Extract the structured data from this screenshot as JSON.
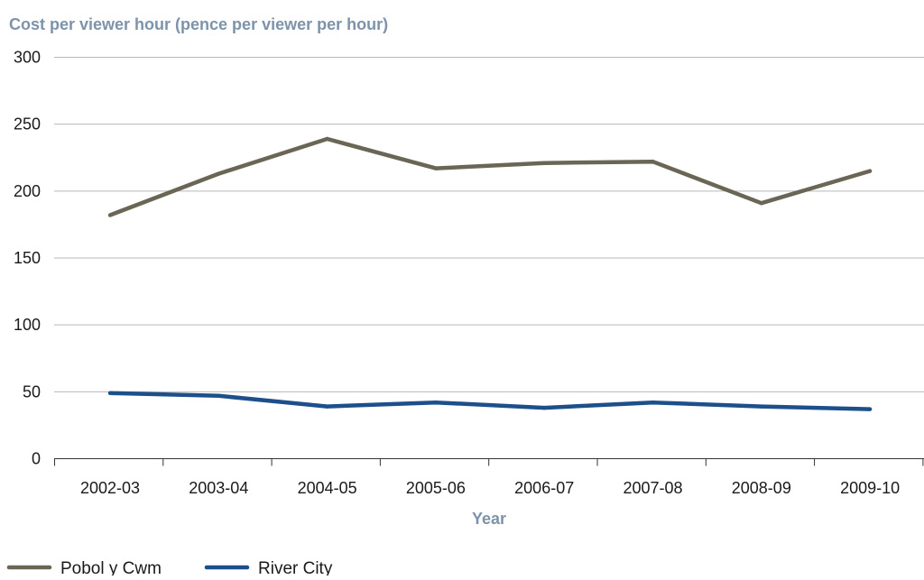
{
  "chart_data": {
    "type": "line",
    "title": "",
    "ylabel": "Cost per viewer hour (pence per viewer per hour)",
    "xlabel": "Year",
    "categories": [
      "2002-03",
      "2003-04",
      "2004-05",
      "2005-06",
      "2006-07",
      "2007-08",
      "2008-09",
      "2009-10"
    ],
    "ylim": [
      0,
      300
    ],
    "yticks": [
      "0",
      "50",
      "100",
      "150",
      "200",
      "250",
      "300"
    ],
    "grid": true,
    "legend_position": "bottom-left",
    "series": [
      {
        "name": "Pobol y Cwm",
        "color": "#6b6556",
        "values": [
          182,
          213,
          239,
          217,
          221,
          222,
          191,
          215
        ]
      },
      {
        "name": "River City",
        "color": "#1d4f8b",
        "values": [
          49,
          47,
          39,
          42,
          38,
          42,
          39,
          37
        ]
      }
    ],
    "colors": {
      "axis_title": "#7d93aa",
      "gridline": "#b8b8b8",
      "axis": "#333333"
    }
  }
}
